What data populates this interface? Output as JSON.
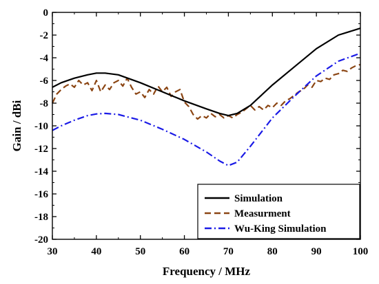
{
  "chart_data": {
    "type": "line",
    "xlabel": "Frequency / MHz",
    "ylabel": "Gain / dBi",
    "xlim": [
      30,
      100
    ],
    "ylim": [
      -20,
      0
    ],
    "xticks": [
      "30",
      "40",
      "50",
      "60",
      "70",
      "80",
      "90",
      "100"
    ],
    "yticks": [
      "0",
      "-2",
      "-4",
      "-6",
      "-8",
      "-10",
      "-12",
      "-14",
      "-16",
      "-18",
      "-20"
    ],
    "grid": false,
    "legend_position": "bottom-right",
    "series": [
      {
        "name": "Simulation",
        "color": "#000000",
        "style": "solid",
        "x": [
          30,
          32,
          35,
          38,
          40,
          42,
          45,
          50,
          55,
          60,
          65,
          68,
          70,
          72,
          75,
          80,
          85,
          90,
          95,
          100
        ],
        "y": [
          -6.6,
          -6.2,
          -5.8,
          -5.5,
          -5.35,
          -5.35,
          -5.5,
          -6.2,
          -7.0,
          -7.8,
          -8.5,
          -8.9,
          -9.1,
          -8.9,
          -8.2,
          -6.4,
          -4.8,
          -3.2,
          -2.0,
          -1.4
        ]
      },
      {
        "name": "Measurment",
        "color": "#8B4513",
        "style": "dashed",
        "x": [
          30,
          31,
          32,
          33,
          34,
          35,
          36,
          37,
          38,
          39,
          40,
          41,
          42,
          43,
          44,
          45,
          46,
          47,
          48,
          49,
          50,
          51,
          52,
          53,
          54,
          55,
          56,
          57,
          58,
          59,
          60,
          61,
          62,
          63,
          64,
          65,
          66,
          67,
          68,
          69,
          70,
          71,
          72,
          73,
          74,
          75,
          76,
          77,
          78,
          79,
          80,
          81,
          82,
          83,
          84,
          85,
          86,
          87,
          88,
          89,
          90,
          91,
          92,
          93,
          94,
          95,
          96,
          97,
          98,
          99,
          100
        ],
        "y": [
          -8.0,
          -7.2,
          -6.8,
          -6.5,
          -6.3,
          -6.6,
          -6.0,
          -6.4,
          -6.2,
          -6.9,
          -6.0,
          -7.0,
          -6.4,
          -6.8,
          -6.2,
          -6.0,
          -6.5,
          -5.8,
          -6.6,
          -7.2,
          -7.0,
          -7.5,
          -6.8,
          -7.2,
          -6.5,
          -7.0,
          -6.6,
          -7.4,
          -7.0,
          -6.8,
          -7.9,
          -8.3,
          -9.0,
          -9.4,
          -9.1,
          -9.3,
          -8.9,
          -9.2,
          -9.0,
          -9.3,
          -9.1,
          -9.3,
          -9.0,
          -8.8,
          -8.5,
          -8.2,
          -8.6,
          -8.3,
          -8.6,
          -8.2,
          -8.4,
          -8.0,
          -8.2,
          -7.8,
          -7.6,
          -7.3,
          -7.0,
          -6.8,
          -6.4,
          -6.6,
          -6.0,
          -6.1,
          -5.8,
          -5.9,
          -5.5,
          -5.4,
          -5.1,
          -5.2,
          -4.9,
          -4.7,
          -4.6
        ]
      },
      {
        "name": "Wu-King Simulation",
        "color": "#1A1AE6",
        "style": "dashdot",
        "x": [
          30,
          32,
          35,
          38,
          40,
          42,
          45,
          50,
          55,
          60,
          65,
          68,
          70,
          72,
          75,
          80,
          85,
          90,
          95,
          100
        ],
        "y": [
          -10.4,
          -10.0,
          -9.5,
          -9.1,
          -8.95,
          -8.9,
          -9.0,
          -9.5,
          -10.3,
          -11.2,
          -12.3,
          -13.1,
          -13.5,
          -13.2,
          -11.8,
          -9.3,
          -7.4,
          -5.6,
          -4.3,
          -3.6
        ]
      }
    ]
  }
}
